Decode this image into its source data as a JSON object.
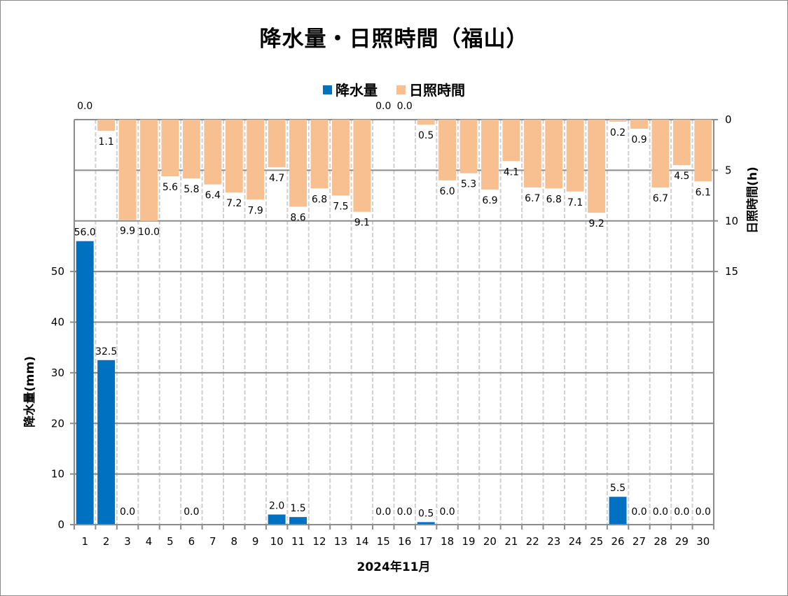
{
  "chart_data": {
    "type": "bar",
    "title": "降水量・日照時間（福山）",
    "xlabel": "2024年11月",
    "categories": [
      "1",
      "2",
      "3",
      "4",
      "5",
      "6",
      "7",
      "8",
      "9",
      "10",
      "11",
      "12",
      "13",
      "14",
      "15",
      "16",
      "17",
      "18",
      "19",
      "20",
      "21",
      "22",
      "23",
      "24",
      "25",
      "26",
      "27",
      "28",
      "29",
      "30"
    ],
    "series": [
      {
        "name": "降水量",
        "axis": "left",
        "color": "#0070C0",
        "values": [
          56.0,
          32.5,
          0.0,
          null,
          null,
          0.0,
          null,
          null,
          null,
          2.0,
          1.5,
          null,
          null,
          null,
          0.0,
          0.0,
          0.5,
          0.0,
          null,
          null,
          null,
          null,
          null,
          null,
          null,
          5.5,
          0.0,
          0.0,
          0.0,
          0.0
        ],
        "labels": [
          "56.0",
          "32.5",
          "0.0",
          "",
          "",
          "0.0",
          "",
          "",
          "",
          "2.0",
          "1.5",
          "",
          "",
          "",
          "0.0",
          "0.0",
          "0.5",
          "0.0",
          "",
          "",
          "",
          "",
          "",
          "",
          "",
          "5.5",
          "0.0",
          "0.0",
          "0.0",
          "0.0"
        ]
      },
      {
        "name": "日照時間",
        "axis": "right",
        "inverted": true,
        "color": "#F8C090",
        "values": [
          0.0,
          1.1,
          9.9,
          10.0,
          5.6,
          5.8,
          6.4,
          7.2,
          7.9,
          4.7,
          8.6,
          6.8,
          7.5,
          9.1,
          0.0,
          0.0,
          0.5,
          6.0,
          5.3,
          6.9,
          4.1,
          6.7,
          6.8,
          7.1,
          9.2,
          0.2,
          0.9,
          6.7,
          4.5,
          6.1
        ],
        "labels": [
          "0.0",
          "1.1",
          "9.9",
          "10.0",
          "5.6",
          "5.8",
          "6.4",
          "7.2",
          "7.9",
          "4.7",
          "8.6",
          "6.8",
          "7.5",
          "9.1",
          "0.0",
          "0.0",
          "0.5",
          "6.0",
          "5.3",
          "6.9",
          "4.1",
          "6.7",
          "6.8",
          "7.1",
          "9.2",
          "0.2",
          "0.9",
          "6.7",
          "4.5",
          "6.1"
        ]
      }
    ],
    "left_axis": {
      "label": "降水量(mm)",
      "range": [
        0,
        80
      ],
      "ticks": [
        0,
        10,
        20,
        30,
        40,
        50
      ]
    },
    "right_axis": {
      "label": "日照時間(h)",
      "range": [
        0,
        40
      ],
      "inverted": true,
      "ticks": [
        0,
        5,
        10,
        15
      ]
    },
    "grid": true,
    "legend": {
      "position": "top",
      "entries": [
        "降水量",
        "日照時間"
      ]
    }
  }
}
